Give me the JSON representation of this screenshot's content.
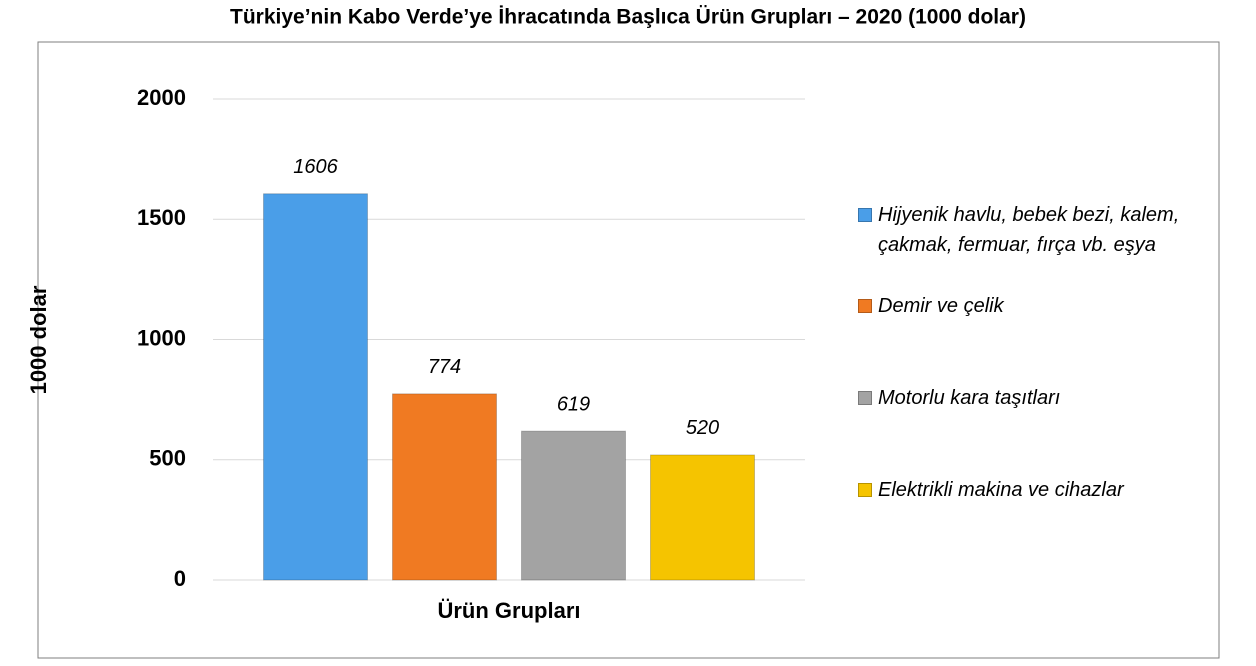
{
  "chart_data": {
    "type": "bar",
    "title": "Türkiye’nin Kabo Verde’ye İhracatında Başlıca Ürün Grupları – 2020 (1000 dolar)",
    "y_label": "1000 dolar",
    "x_label": "Ürün Grupları",
    "categories": [
      null
    ],
    "series": [
      {
        "name": "Hijyenik havlu, bebek bezi, kalem, çakmak, fermuar, fırça vb. eşya",
        "color": "#4a9ee8",
        "values": [
          1606
        ]
      },
      {
        "name": "Demir ve çelik",
        "color": "#f07a22",
        "values": [
          774
        ]
      },
      {
        "name": "Motorlu kara taşıtları",
        "color": "#a3a3a3",
        "values": [
          619
        ]
      },
      {
        "name": "Elektrikli makina ve cihazlar",
        "color": "#f5c400",
        "values": [
          520
        ]
      }
    ],
    "ylim": [
      0,
      2000
    ],
    "yticks": [
      0,
      500,
      1000,
      1500,
      2000
    ],
    "grid": true,
    "legend": "right"
  }
}
